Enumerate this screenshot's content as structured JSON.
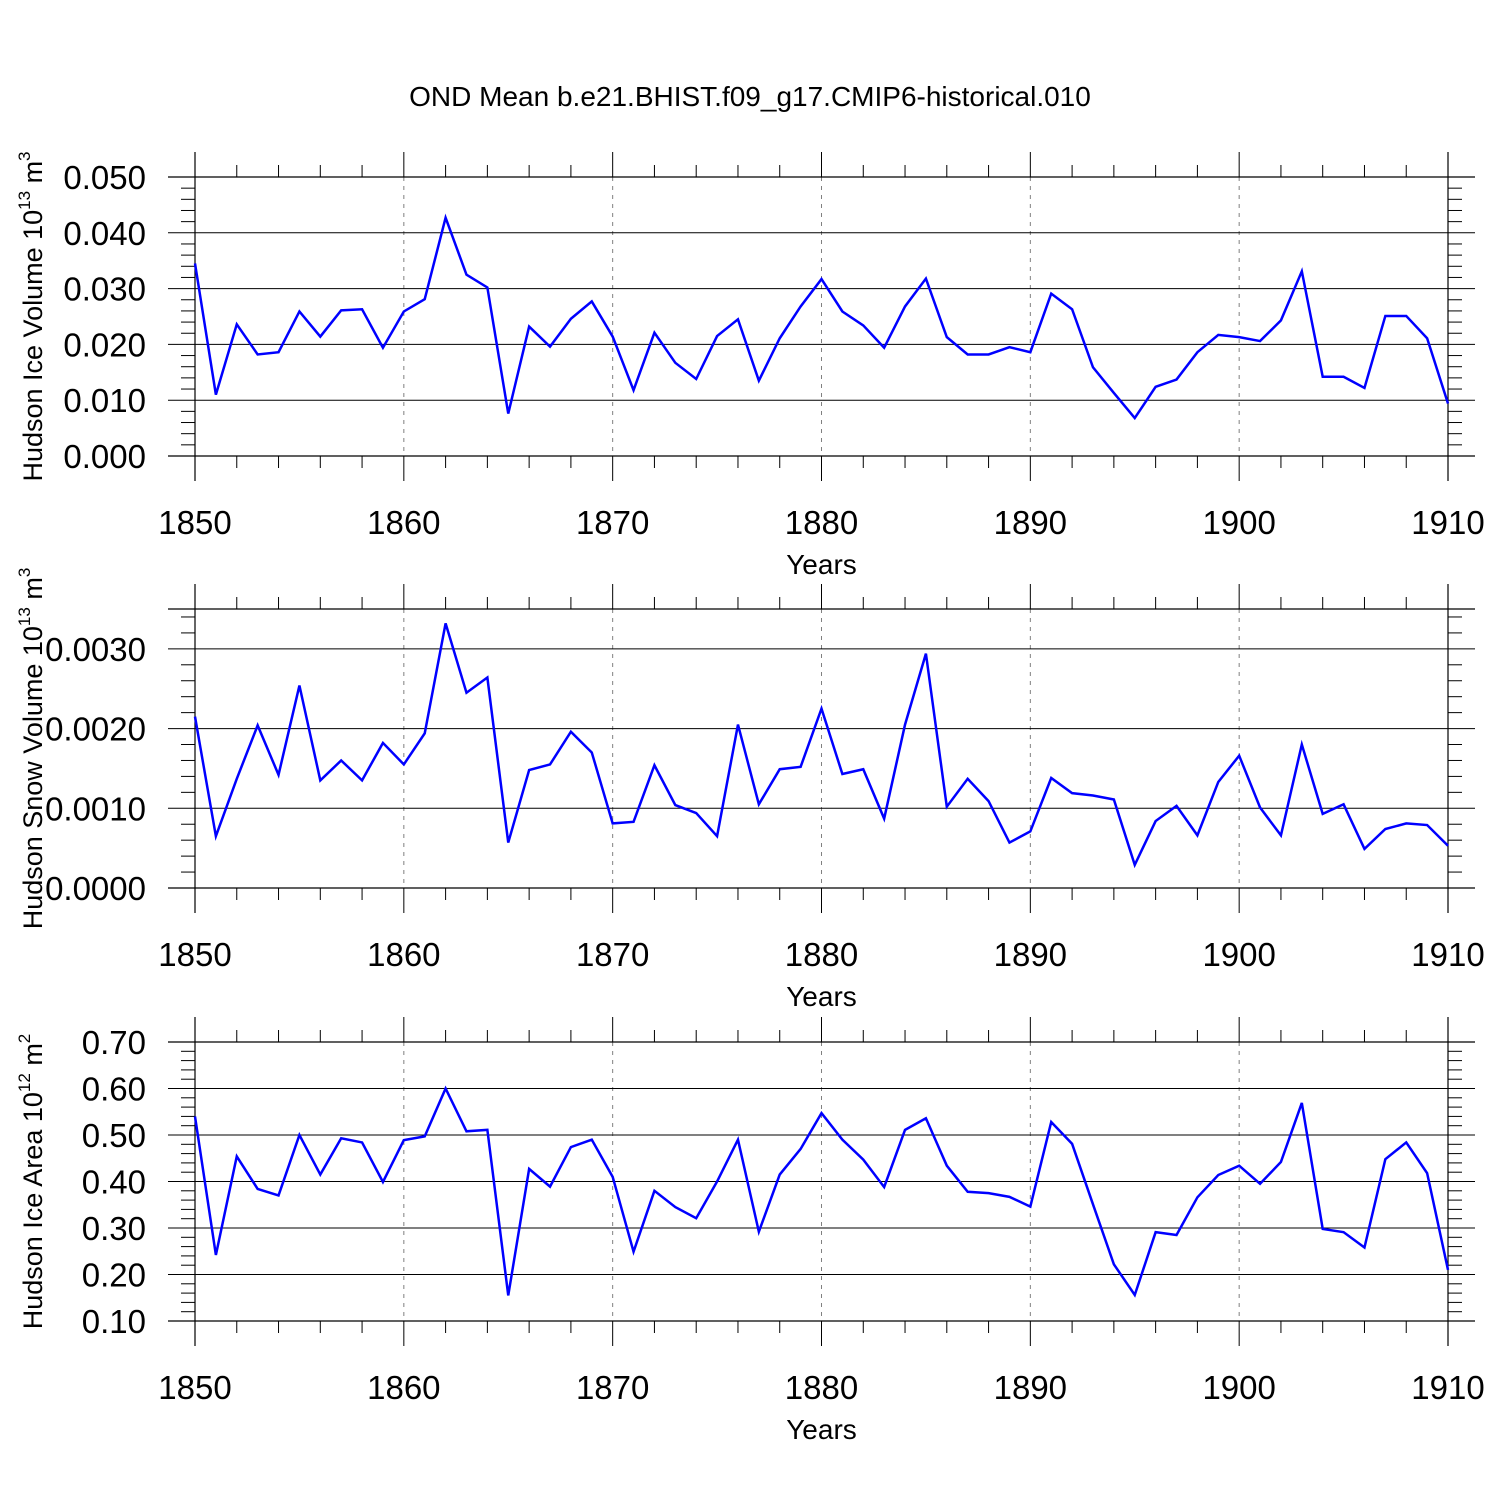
{
  "title": "OND Mean b.e21.BHIST.f09_g17.CMIP6-historical.010",
  "colors": {
    "line": "#0000ff",
    "axis": "#000000",
    "grid": "#808080"
  },
  "chart_data": [
    {
      "type": "line",
      "ylabel": {
        "base": "Hudson Ice Volume 10",
        "exp": "13",
        "unit": " m",
        "unit_exp": "3"
      },
      "xlabel": "Years",
      "xlim": [
        1850,
        1910
      ],
      "ylim": [
        0.0,
        0.05
      ],
      "xticks": [
        "1850",
        "1860",
        "1870",
        "1880",
        "1890",
        "1900",
        "1910"
      ],
      "yticks": [
        "0.000",
        "0.010",
        "0.020",
        "0.030",
        "0.040",
        "0.050"
      ],
      "x_start": 1850,
      "values": [
        0.0345,
        0.011,
        0.0236,
        0.0182,
        0.0186,
        0.0259,
        0.0214,
        0.0261,
        0.0263,
        0.0194,
        0.0259,
        0.0281,
        0.0427,
        0.0325,
        0.0302,
        0.0076,
        0.0232,
        0.0196,
        0.0246,
        0.0277,
        0.0214,
        0.0118,
        0.0221,
        0.0167,
        0.0138,
        0.0215,
        0.0245,
        0.0135,
        0.0211,
        0.0268,
        0.0317,
        0.0259,
        0.0234,
        0.0194,
        0.0268,
        0.0318,
        0.0213,
        0.0182,
        0.0182,
        0.0195,
        0.0186,
        0.0291,
        0.0263,
        0.0159,
        0.0113,
        0.0068,
        0.0124,
        0.0137,
        0.0186,
        0.0217,
        0.0213,
        0.0206,
        0.0243,
        0.0331,
        0.0142,
        0.0142,
        0.0122,
        0.0251,
        0.0251,
        0.0211,
        0.0094
      ]
    },
    {
      "type": "line",
      "ylabel": {
        "base": "Hudson Snow Volume 10",
        "exp": "13",
        "unit": " m",
        "unit_exp": "3"
      },
      "xlabel": "Years",
      "xlim": [
        1850,
        1910
      ],
      "ylim": [
        0.0,
        0.0035
      ],
      "xticks": [
        "1850",
        "1860",
        "1870",
        "1880",
        "1890",
        "1900",
        "1910"
      ],
      "yticks": [
        "0.0000",
        "0.0010",
        "0.0020",
        "0.0030"
      ],
      "x_start": 1850,
      "values": [
        0.00215,
        0.00065,
        0.00137,
        0.00204,
        0.00142,
        0.00254,
        0.00135,
        0.0016,
        0.00135,
        0.00182,
        0.00155,
        0.00194,
        0.00332,
        0.00245,
        0.00264,
        0.00057,
        0.00148,
        0.00155,
        0.00196,
        0.0017,
        0.00081,
        0.00083,
        0.00154,
        0.00104,
        0.00094,
        0.00065,
        0.00205,
        0.00105,
        0.00149,
        0.00152,
        0.00225,
        0.00143,
        0.00149,
        0.00087,
        0.00205,
        0.00294,
        0.00102,
        0.00137,
        0.00109,
        0.00057,
        0.00071,
        0.00138,
        0.00119,
        0.00116,
        0.00111,
        0.00029,
        0.00084,
        0.00103,
        0.00066,
        0.00133,
        0.00166,
        0.00101,
        0.00066,
        0.0018,
        0.00093,
        0.00105,
        0.00049,
        0.00074,
        0.00081,
        0.00079,
        0.00053
      ]
    },
    {
      "type": "line",
      "ylabel": {
        "base": "Hudson Ice Area 10",
        "exp": "12",
        "unit": " m",
        "unit_exp": "2"
      },
      "xlabel": "Years",
      "xlim": [
        1850,
        1910
      ],
      "ylim": [
        0.1,
        0.7
      ],
      "xticks": [
        "1850",
        "1860",
        "1870",
        "1880",
        "1890",
        "1900",
        "1910"
      ],
      "yticks": [
        "0.10",
        "0.20",
        "0.30",
        "0.40",
        "0.50",
        "0.60",
        "0.70"
      ],
      "x_start": 1850,
      "values": [
        0.54,
        0.242,
        0.454,
        0.384,
        0.37,
        0.5,
        0.415,
        0.493,
        0.484,
        0.399,
        0.489,
        0.497,
        0.6,
        0.508,
        0.511,
        0.155,
        0.427,
        0.389,
        0.474,
        0.49,
        0.41,
        0.249,
        0.38,
        0.345,
        0.321,
        0.4,
        0.49,
        0.292,
        0.415,
        0.47,
        0.547,
        0.49,
        0.447,
        0.388,
        0.511,
        0.536,
        0.434,
        0.378,
        0.375,
        0.367,
        0.346,
        0.528,
        0.481,
        0.351,
        0.222,
        0.156,
        0.291,
        0.285,
        0.366,
        0.414,
        0.434,
        0.395,
        0.442,
        0.569,
        0.298,
        0.291,
        0.258,
        0.448,
        0.484,
        0.418,
        0.21
      ]
    }
  ]
}
